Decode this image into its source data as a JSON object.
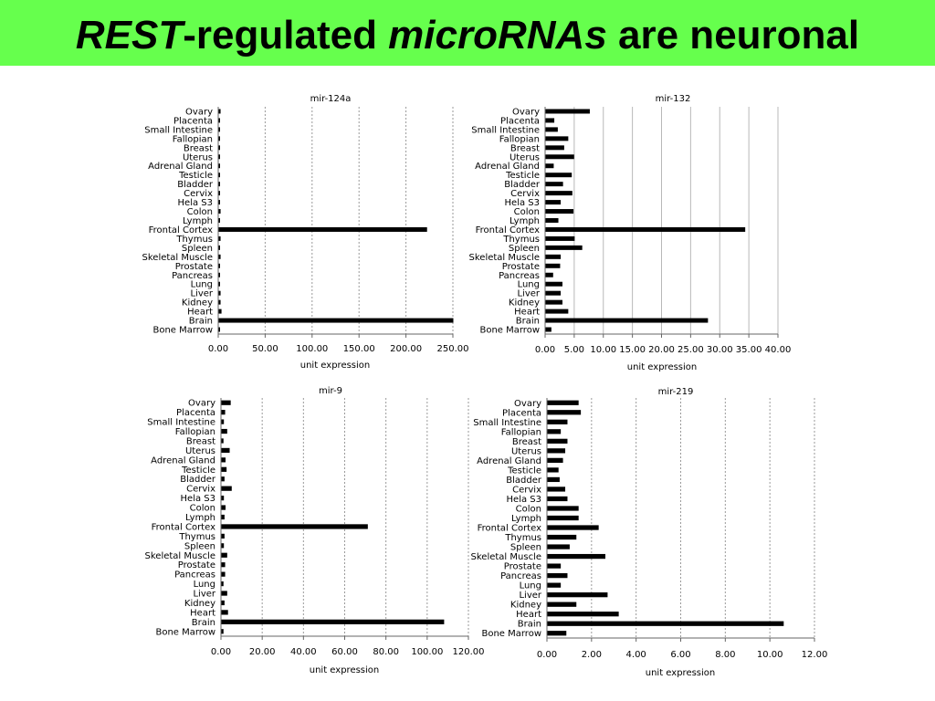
{
  "slide": {
    "title_parts": [
      "REST",
      "-regulated ",
      "microRNAs",
      " are neuronal"
    ],
    "title_bg_color": "#66ff4d"
  },
  "chart_data": [
    {
      "type": "bar",
      "orientation": "horizontal",
      "title": "mir-124a",
      "xlabel": "unit expression",
      "categories": [
        "Ovary",
        "Placenta",
        "Small Intestine",
        "Fallopian",
        "Breast",
        "Uterus",
        "Adrenal Gland",
        "Testicle",
        "Bladder",
        "Cervix",
        "Hela S3",
        "Colon",
        "Lymph",
        "Frontal Cortex",
        "Thymus",
        "Spleen",
        "Skeletal Muscle",
        "Prostate",
        "Pancreas",
        "Lung",
        "Liver",
        "Kidney",
        "Heart",
        "Brain",
        "Bone Marrow"
      ],
      "values": [
        2,
        1,
        1,
        1,
        1,
        1,
        1,
        1,
        1,
        1,
        1,
        2,
        1,
        222,
        2,
        1,
        2,
        1,
        1,
        1,
        2,
        2,
        3,
        250,
        1
      ],
      "xlim": [
        0,
        250
      ],
      "ticks": [
        "0.00",
        "50.00",
        "100.00",
        "150.00",
        "200.00",
        "250.00"
      ],
      "grid": true
    },
    {
      "type": "bar",
      "orientation": "horizontal",
      "title": "mir-132",
      "xlabel": "unit expression",
      "categories": [
        "Ovary",
        "Placenta",
        "Small Intestine",
        "Fallopian",
        "Breast",
        "Uterus",
        "Adrenal Gland",
        "Testicle",
        "Bladder",
        "Cervix",
        "Hela S3",
        "Colon",
        "Lymph",
        "Frontal Cortex",
        "Thymus",
        "Spleen",
        "Skeletal Muscle",
        "Prostate",
        "Pancreas",
        "Lung",
        "Liver",
        "Kidney",
        "Heart",
        "Brain",
        "Bone Marrow"
      ],
      "values": [
        7.6,
        1.5,
        2.1,
        3.9,
        3.2,
        4.9,
        1.4,
        4.5,
        3,
        4.6,
        2.6,
        4.8,
        2.2,
        34.3,
        5,
        6.3,
        2.6,
        2.5,
        1.3,
        2.9,
        2.6,
        2.9,
        3.9,
        27.9,
        1
      ],
      "xlim": [
        0,
        40
      ],
      "ticks": [
        "0.00",
        "5.00",
        "10.00",
        "15.00",
        "20.00",
        "25.00",
        "30.00",
        "35.00",
        "40.00"
      ],
      "grid": true
    },
    {
      "type": "bar",
      "orientation": "horizontal",
      "title": "mir-9",
      "xlabel": "unit expression",
      "categories": [
        "Ovary",
        "Placenta",
        "Small Intestine",
        "Fallopian",
        "Breast",
        "Uterus",
        "Adrenal Gland",
        "Testicle",
        "Bladder",
        "Cervix",
        "Hela S3",
        "Colon",
        "Lymph",
        "Frontal Cortex",
        "Thymus",
        "Spleen",
        "Skeletal Muscle",
        "Prostate",
        "Pancreas",
        "Lung",
        "Liver",
        "Kidney",
        "Heart",
        "Brain",
        "Bone Marrow"
      ],
      "values": [
        4.5,
        1.8,
        1.2,
        2.8,
        1,
        4,
        2,
        2.5,
        1.5,
        5,
        1.2,
        2,
        1.5,
        71,
        1.5,
        1.2,
        2.8,
        1.8,
        1.8,
        1,
        2.8,
        1.5,
        3.2,
        108,
        1
      ],
      "xlim": [
        0,
        120
      ],
      "ticks": [
        "0.00",
        "20.00",
        "40.00",
        "60.00",
        "80.00",
        "100.00",
        "120.00"
      ],
      "grid": true
    },
    {
      "type": "bar",
      "orientation": "horizontal",
      "title": "mir-219",
      "xlabel": "unit expression",
      "categories": [
        "Ovary",
        "Placenta",
        "Small Intestine",
        "Fallopian",
        "Breast",
        "Uterus",
        "Adrenal Gland",
        "Testicle",
        "Bladder",
        "Cervix",
        "Hela S3",
        "Colon",
        "Lymph",
        "Frontal Cortex",
        "Thymus",
        "Spleen",
        "Skeletal Muscle",
        "Prostate",
        "Pancreas",
        "Lung",
        "Liver",
        "Kidney",
        "Heart",
        "Brain",
        "Bone Marrow"
      ],
      "values": [
        1.4,
        1.5,
        0.9,
        0.6,
        0.9,
        0.8,
        0.7,
        0.5,
        0.55,
        0.8,
        0.9,
        1.4,
        1.4,
        2.3,
        1.3,
        1,
        2.6,
        0.6,
        0.9,
        0.6,
        2.7,
        1.3,
        3.2,
        10.6,
        0.85
      ],
      "xlim": [
        0,
        12
      ],
      "ticks": [
        "0.00",
        "2.00",
        "4.00",
        "6.00",
        "8.00",
        "10.00",
        "12.00"
      ],
      "grid": true
    }
  ]
}
